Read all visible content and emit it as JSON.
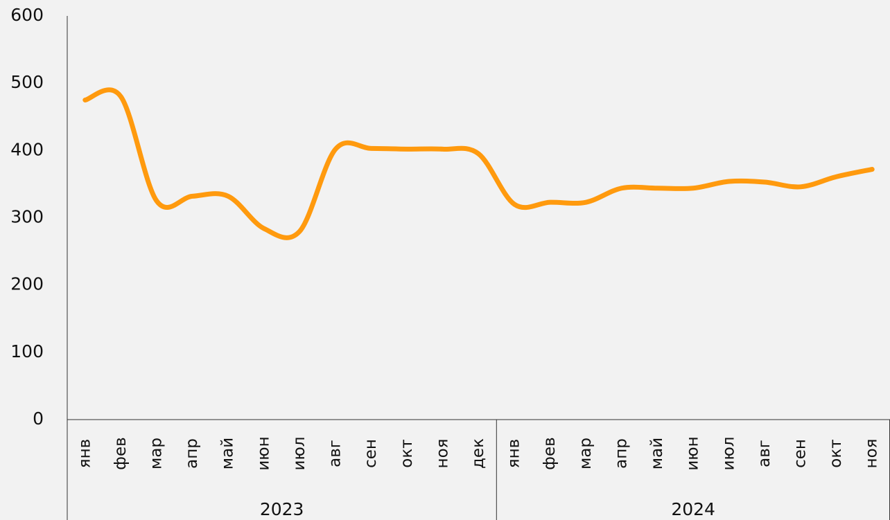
{
  "chart_data": {
    "type": "line",
    "category_groups": [
      {
        "name": "2023",
        "categories": [
          "янв",
          "фев",
          "мар",
          "апр",
          "май",
          "июн",
          "июл",
          "авг",
          "сен",
          "окт",
          "ноя",
          "дек"
        ]
      },
      {
        "name": "2024",
        "categories": [
          "янв",
          "фев",
          "мар",
          "апр",
          "май",
          "июн",
          "июл",
          "авг",
          "сен",
          "окт",
          "ноя"
        ]
      }
    ],
    "series": [
      {
        "color": "#ff9a0e",
        "values": [
          475,
          480,
          325,
          332,
          332,
          284,
          280,
          402,
          403,
          402,
          402,
          395,
          320,
          323,
          323,
          344,
          344,
          344,
          354,
          353,
          346,
          361,
          372
        ]
      }
    ],
    "ylim": [
      0,
      600
    ],
    "yticks": [
      0,
      100,
      200,
      300,
      400,
      500,
      600
    ],
    "grid": false
  }
}
